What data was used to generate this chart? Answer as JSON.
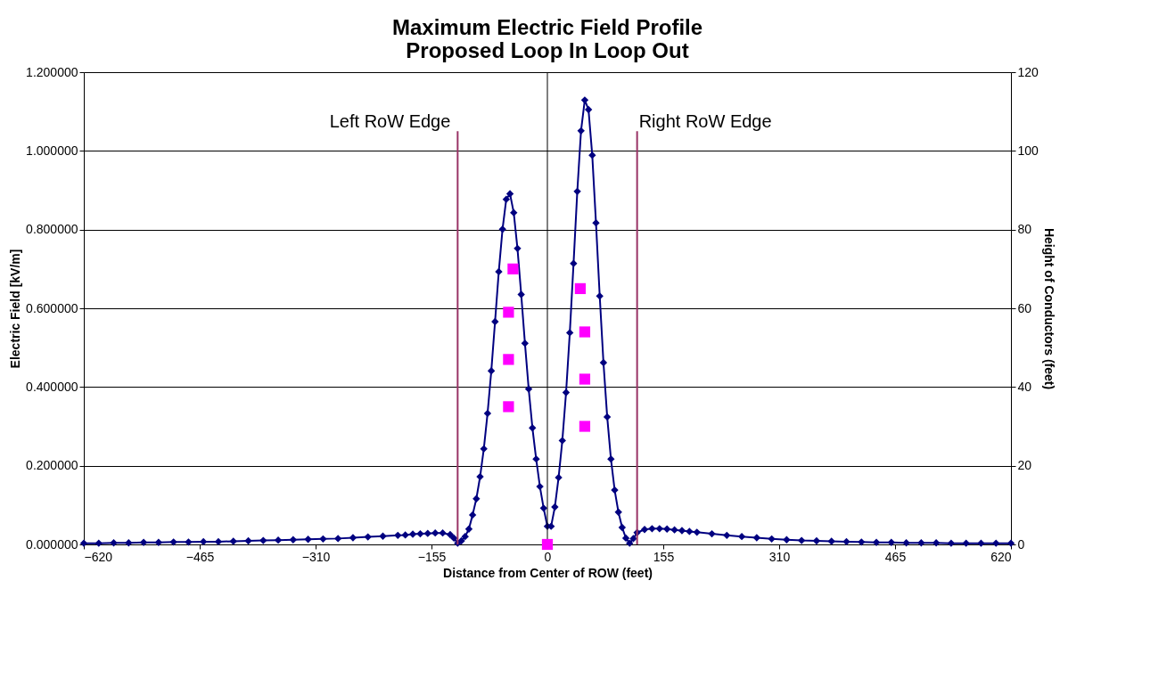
{
  "chart_data": {
    "type": "line",
    "title": "Maximum Electric Field Profile\nProposed Loop In Loop Out",
    "xlabel": "Distance from Center of ROW (feet)",
    "ylabel": "Electric Field [kV/m]",
    "y2label": "Height of Conductors (feet)",
    "xlim": [
      -620,
      620
    ],
    "xticks": [
      -620,
      -465,
      -310,
      -155,
      0,
      155,
      310,
      465,
      620
    ],
    "ylim": [
      0,
      1.2
    ],
    "yticks": [
      {
        "value": 0,
        "label": "0.000000"
      },
      {
        "value": 0.2,
        "label": "0.200000"
      },
      {
        "value": 0.4,
        "label": "0.400000"
      },
      {
        "value": 0.6,
        "label": "0.600000"
      },
      {
        "value": 0.8,
        "label": "0.800000"
      },
      {
        "value": 1.0,
        "label": "1.000000"
      },
      {
        "value": 1.2,
        "label": "1.200000"
      }
    ],
    "y2lim": [
      0,
      120
    ],
    "y2ticks": [
      0,
      20,
      40,
      60,
      80,
      100,
      120
    ],
    "grid": "y",
    "line_style": "solid",
    "series": [
      {
        "marker": "diamond",
        "color": "#000080",
        "x": [
          -620,
          -600,
          -580,
          -560,
          -540,
          -520,
          -500,
          -480,
          -460,
          -440,
          -420,
          -400,
          -380,
          -360,
          -340,
          -320,
          -300,
          -280,
          -260,
          -240,
          -220,
          -200,
          -190,
          -180,
          -170,
          -160,
          -150,
          -140,
          -130,
          -125,
          -120,
          -115,
          -110,
          -105,
          -100,
          -95,
          -90,
          -85,
          -80,
          -75,
          -70,
          -65,
          -60,
          -55,
          -50,
          -45,
          -40,
          -35,
          -30,
          -25,
          -20,
          -15,
          -10,
          -5,
          0,
          5,
          10,
          15,
          20,
          25,
          30,
          35,
          40,
          45,
          50,
          55,
          60,
          65,
          70,
          75,
          80,
          85,
          90,
          95,
          100,
          105,
          110,
          115,
          120,
          130,
          140,
          150,
          160,
          170,
          180,
          190,
          200,
          220,
          240,
          260,
          280,
          300,
          320,
          340,
          360,
          380,
          400,
          420,
          440,
          460,
          480,
          500,
          520,
          540,
          560,
          580,
          600,
          620
        ],
        "values": [
          0.003,
          0.003,
          0.004,
          0.004,
          0.005,
          0.005,
          0.006,
          0.006,
          0.007,
          0.007,
          0.008,
          0.009,
          0.01,
          0.011,
          0.012,
          0.013,
          0.014,
          0.015,
          0.017,
          0.019,
          0.021,
          0.023,
          0.024,
          0.026,
          0.027,
          0.028,
          0.029,
          0.029,
          0.025,
          0.016,
          0.003,
          0.009,
          0.02,
          0.039,
          0.075,
          0.116,
          0.172,
          0.243,
          0.333,
          0.441,
          0.566,
          0.693,
          0.801,
          0.877,
          0.891,
          0.843,
          0.752,
          0.635,
          0.511,
          0.395,
          0.296,
          0.217,
          0.147,
          0.092,
          0.046,
          0.046,
          0.095,
          0.17,
          0.264,
          0.386,
          0.538,
          0.714,
          0.897,
          1.051,
          1.129,
          1.105,
          0.989,
          0.817,
          0.631,
          0.462,
          0.324,
          0.217,
          0.138,
          0.082,
          0.043,
          0.016,
          0.003,
          0.015,
          0.03,
          0.038,
          0.04,
          0.04,
          0.039,
          0.037,
          0.035,
          0.033,
          0.031,
          0.027,
          0.023,
          0.02,
          0.017,
          0.014,
          0.012,
          0.01,
          0.009,
          0.008,
          0.007,
          0.006,
          0.005,
          0.005,
          0.004,
          0.004,
          0.004,
          0.003,
          0.003,
          0.003,
          0.003,
          0.003
        ]
      },
      {
        "type": "scatter",
        "marker": "square",
        "axis": "y2",
        "color": "#ff00ff",
        "x": [
          -46,
          -52,
          -52,
          -52,
          0,
          44,
          50,
          50,
          50
        ],
        "values": [
          70,
          59,
          47,
          35,
          0,
          65,
          54,
          42,
          30
        ]
      }
    ],
    "ref_lines": [
      {
        "axis": "x",
        "value": 0,
        "color": "#000000"
      },
      {
        "axis": "x",
        "value": -120,
        "label": "Left RoW Edge",
        "color": "#993366"
      },
      {
        "axis": "x",
        "value": 120,
        "label": "Right RoW Edge",
        "color": "#993366"
      }
    ]
  }
}
